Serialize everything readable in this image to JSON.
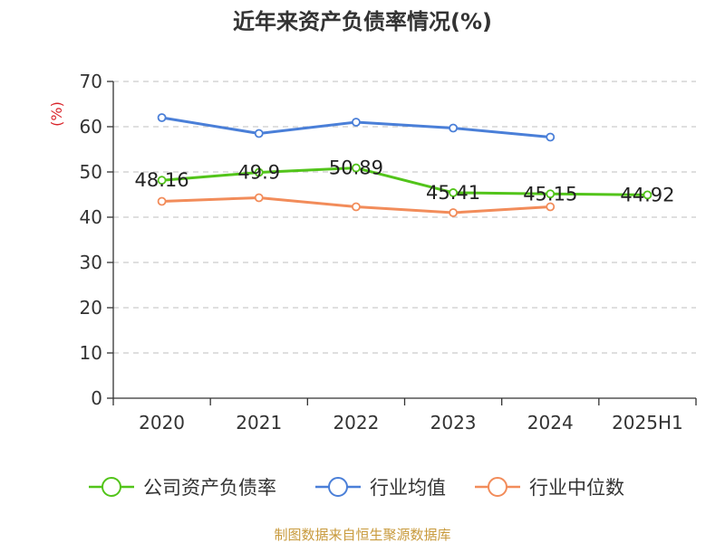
{
  "chart_data": {
    "type": "line",
    "title": "近年来资产负债率情况(%)",
    "ylabel": "(%)",
    "xlabel": "",
    "categories": [
      "2020",
      "2021",
      "2022",
      "2023",
      "2024",
      "2025H1"
    ],
    "ylim": [
      0,
      70
    ],
    "yticks": [
      0,
      10,
      20,
      30,
      40,
      50,
      60,
      70
    ],
    "grid": true,
    "legend_position": "bottom",
    "series": [
      {
        "name": "公司资产负债率",
        "color": "#52c41a",
        "values": [
          48.16,
          49.9,
          50.89,
          45.41,
          45.15,
          44.92
        ],
        "labels": [
          "48.16",
          "49.9",
          "50.89",
          "45.41",
          "45.15",
          "44.92"
        ]
      },
      {
        "name": "行业均值",
        "color": "#4a7fd8",
        "values": [
          62.0,
          58.5,
          61.0,
          59.7,
          57.7,
          null
        ]
      },
      {
        "name": "行业中位数",
        "color": "#f28c5a",
        "values": [
          43.5,
          44.3,
          42.3,
          41.0,
          42.3,
          null
        ]
      }
    ]
  },
  "source_text": "制图数据来自恒生聚源数据库",
  "colors": {
    "ylabel": "#d9242a",
    "source": "#c89a3c",
    "axis": "#333333",
    "grid": "#cccccc"
  }
}
